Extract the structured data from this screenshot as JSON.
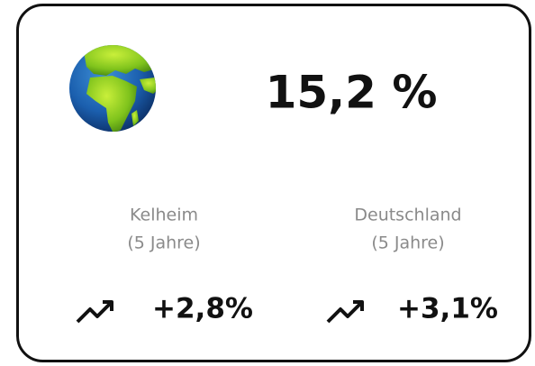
{
  "card": {
    "value": "15,2 %",
    "columns": [
      {
        "label": "Kelheim",
        "period": "(5 Jahre)",
        "change": "+2,8%"
      },
      {
        "label": "Deutschland",
        "period": "(5 Jahre)",
        "change": "+3,1%"
      }
    ]
  }
}
